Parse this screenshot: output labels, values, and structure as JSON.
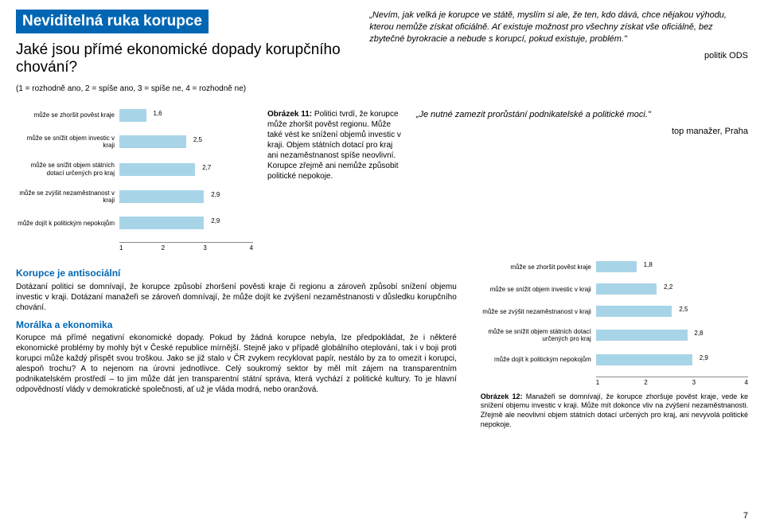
{
  "header": {
    "title": "Neviditelná ruka korupce",
    "subtitle": "Jaké jsou přímé ekonomické dopady korupčního chování?",
    "scale_note": "(1 = rozhodně ano, 2 = spíše ano, 3 = spíše ne, 4 = rozhodně ne)"
  },
  "quote1": {
    "text": "„Nevím, jak velká je korupce ve státě, myslím si ale, že ten, kdo dává, chce nějakou výhodu, kterou nemůže získat oficiálně. Ať existuje možnost pro všechny získat vše oficiálně, bez zbytečné byrokracie a nebude s korupcí, pokud existuje, problém.\"",
    "attr": "politik ODS"
  },
  "chart1": {
    "type": "bar",
    "xlim": [
      1,
      4
    ],
    "xtick_step": 1,
    "bar_color": "#a8d4e8",
    "rows": [
      {
        "label": "může se zhoršit pověst kraje",
        "value": 1.6
      },
      {
        "label": "může se snížit objem investic v kraji",
        "value": 2.5
      },
      {
        "label": "může se snížit objem státních dotací určených pro kraj",
        "value": 2.7
      },
      {
        "label": "může se zvýšit nezaměstnanost v kraji",
        "value": 2.9
      },
      {
        "label": "může dojít k politickým nepokojům",
        "value": 2.9
      }
    ]
  },
  "figure11": {
    "caption": "Obrázek 11: Politici tvrdí, že korupce může zhoršit pověst regionu. Může také vést ke snížení objemů investic v kraji. Objem státních dotací pro kraj ani nezaměstnanost spíše neovlivní. Korupce zřejmě ani nemůže způsobit politické nepokoje.",
    "caption_bold": "Obrázek 11:"
  },
  "quote2": {
    "text": "„Je nutné zamezit prorůstání podnikatelské a politické moci.\"",
    "attr": "top manažer, Praha"
  },
  "chart2": {
    "type": "bar",
    "xlim": [
      1,
      4
    ],
    "xtick_step": 1,
    "bar_color": "#a8d4e8",
    "rows": [
      {
        "label": "může se zhoršit pověst kraje",
        "value": 1.8
      },
      {
        "label": "může se snížit objem investic v kraji",
        "value": 2.2
      },
      {
        "label": "může se zvýšit nezaměstnanost v kraji",
        "value": 2.5
      },
      {
        "label": "může se snížit objem státních dotací určených pro kraj",
        "value": 2.8
      },
      {
        "label": "může dojít k politickým nepokojům",
        "value": 2.9
      }
    ]
  },
  "body": {
    "sec1_head": "Korupce je antisociální",
    "sec1_text": "Dotázaní politici se domnívají, že korupce způsobí zhoršení pověsti kraje či regionu a zároveň způsobí snížení objemu investic v kraji. Dotázaní manažeři se zároveň domnívají, že může dojít ke zvýšení nezaměstnanosti v důsledku korupčního chování.",
    "sec2_head": "Morálka a ekonomika",
    "sec2_text": "Korupce má přímé negativní ekonomické dopady. Pokud by žádná korupce nebyla, lze předpokládat, že i některé ekonomické problémy by mohly být v České republice mírnější. Stejně jako v případě globálního oteplování, tak i v boji proti korupci může každý přispět svou troškou. Jako se již stalo v ČR zvykem recyklovat papír, nestálo by za to omezit i korupci, alespoň trochu? A to nejenom na úrovni jednotlivce. Celý soukromý sektor by měl mít zájem na transparentním podnikatelském prostředí – to jim může dát jen transparentní státní správa, která vychází z politické kultury. To je hlavní odpovědností vlády v demokratické společnosti, ať už je vláda modrá, nebo oranžová."
  },
  "figure12": {
    "caption": "Obrázek 12: Manažeři se domnívají, že korupce zhoršuje pověst kraje, vede ke snížení objemu investic v kraji. Může mít dokonce vliv na zvýšení nezaměstnanosti. Zřejmě ale neovlivní objem státních dotací určených pro kraj, ani nevyvolá politické nepokoje.",
    "caption_bold": "Obrázek 12:"
  },
  "axis_ticks": [
    "1",
    "2",
    "3",
    "4"
  ],
  "page_number": "7"
}
